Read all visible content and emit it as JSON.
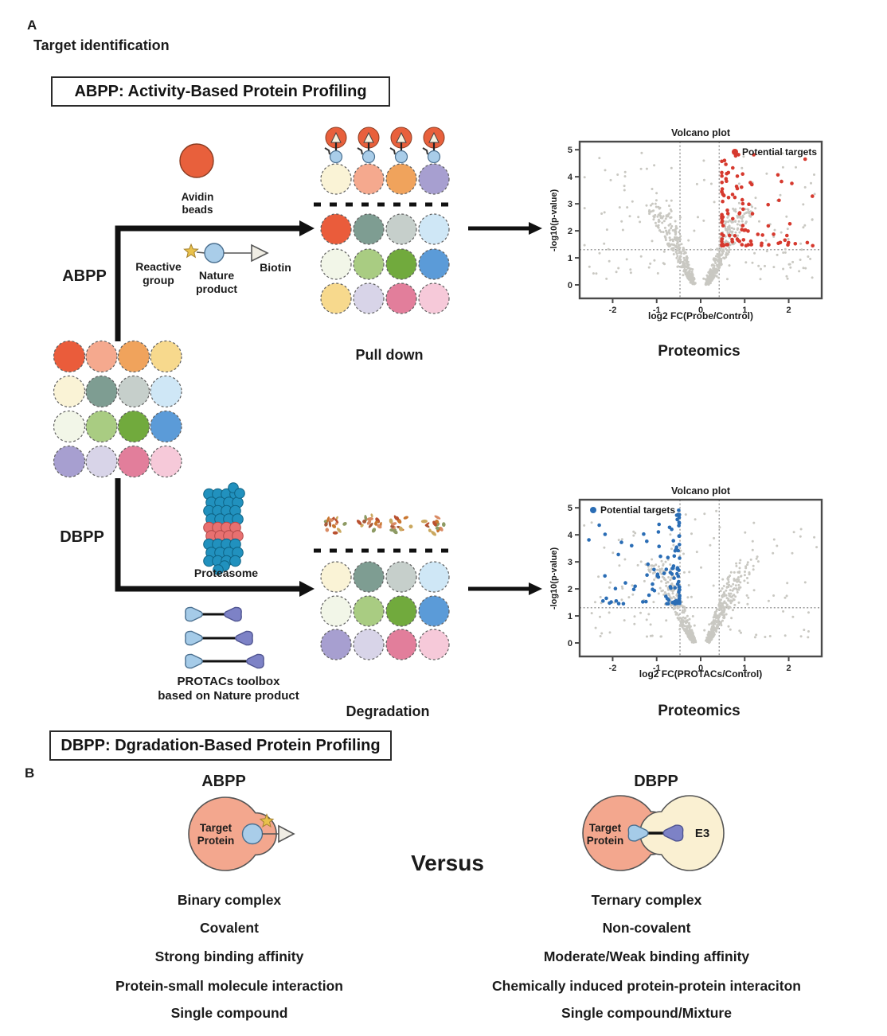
{
  "figure": {
    "panel_a": {
      "label": "A",
      "title": "Target identification",
      "abpp_box": "ABPP: Activity-Based Protein Profiling",
      "dbpp_box": "DBPP: Dgradation-Based Protein Profiling",
      "abpp_label": "ABPP",
      "dbpp_label": "DBPP",
      "avidin_label": "Avidin beads",
      "reactive_group_label": "Reactive group",
      "nature_product_label": "Nature product",
      "biotin_label": "Biotin",
      "proteasome_label": "Proteasome",
      "protacs_label_line1": "PROTACs toolbox",
      "protacs_label_line2": "based on Nature product",
      "pull_down_label": "Pull down",
      "degradation_label": "Degradation",
      "proteomics_label": "Proteomics"
    },
    "panel_b": {
      "label": "B",
      "versus": "Versus",
      "abpp": {
        "title": "ABPP",
        "protein_label": "Target Protein",
        "items": [
          "Binary complex",
          "Covalent",
          "Strong binding affinity",
          "Protein-small molecule interaction",
          "Single compound"
        ]
      },
      "dbpp": {
        "title": "DBPP",
        "protein_label": "Target Protein",
        "e3_label": "E3",
        "items": [
          "Ternary complex",
          "Non-covalent",
          "Moderate/Weak binding affinity",
          "Chemically induced protein-protein interaciton",
          "Single compound/Mixture"
        ]
      }
    }
  },
  "proteome": {
    "grid_colors": [
      [
        "#ea5c3b",
        "#f5a98e",
        "#f0a35c",
        "#f7d98d"
      ],
      [
        "#faf3d6",
        "#7e9d92",
        "#c6cfcb",
        "#cfe7f6"
      ],
      [
        "#f2f6e8",
        "#a9cc82",
        "#71aa3d",
        "#5b9bd8"
      ],
      [
        "#a79fd0",
        "#d8d4e8",
        "#e27e9b",
        "#f6c9d9"
      ]
    ],
    "pulldown_captured": [
      "#faf3d6",
      "#f5a98e",
      "#f0a35c",
      "#a79fd0"
    ],
    "pulldown_grid": [
      [
        "#ea5c3b",
        "#7e9d92",
        "#c6cfcb",
        "#cfe7f6"
      ],
      [
        "#f2f6e8",
        "#a9cc82",
        "#71aa3d",
        "#5b9bd8"
      ],
      [
        "#f7d98d",
        "#d8d4e8",
        "#e27e9b",
        "#f6c9d9"
      ]
    ],
    "degradation_grid": [
      [
        "#faf3d6",
        "#7e9d92",
        "#c6cfcb",
        "#cfe7f6"
      ],
      [
        "#f2f6e8",
        "#a9cc82",
        "#71aa3d",
        "#5b9bd8"
      ],
      [
        "#a79fd0",
        "#d8d4e8",
        "#e27e9b",
        "#f6c9d9"
      ]
    ],
    "fragment_palette": [
      "#b9502f",
      "#d98a63",
      "#c9762f",
      "#caa85f",
      "#8d9a63",
      "#a85a3a"
    ]
  },
  "colors": {
    "avidin": "#e8603c",
    "probe_blue": "#a9cde9",
    "biotin_fill": "#f0ede4",
    "star": "#e9c14b",
    "protac_warhead": "#a5cbe8",
    "protac_e3ligand": "#7d82c6",
    "proteasome_blue": "#2191be",
    "proteasome_red": "#e87070",
    "target_protein": "#f3a78e",
    "e3_fill": "#faf0d2",
    "arrow": "#111111"
  },
  "chart_data": [
    {
      "type": "scatter",
      "variant": "volcano",
      "title": "Volcano plot",
      "xlabel": "log2 FC(Probe/Control)",
      "ylabel": "-log10(p-value)",
      "xlim": [
        -2.75,
        2.75
      ],
      "ylim": [
        -0.5,
        5.3
      ],
      "xticks": [
        -2,
        -1,
        0,
        1,
        2
      ],
      "yticks": [
        0,
        1,
        2,
        3,
        4,
        5
      ],
      "threshold_vlines": [
        -0.47,
        0.42
      ],
      "threshold_hline": 1.3,
      "legend_label": "Potential targets",
      "legend_position": "top-right",
      "highlight_side": "right",
      "highlight_color": "#d6392e",
      "base_color": "#c9c8c2"
    },
    {
      "type": "scatter",
      "variant": "volcano",
      "title": "Volcano plot",
      "xlabel": "log2 FC(PROTACs/Control)",
      "ylabel": "-log10(p-value)",
      "xlim": [
        -2.75,
        2.75
      ],
      "ylim": [
        -0.5,
        5.3
      ],
      "xticks": [
        -2,
        -1,
        0,
        1,
        2
      ],
      "yticks": [
        0,
        1,
        2,
        3,
        4,
        5
      ],
      "threshold_vlines": [
        -0.47,
        0.42
      ],
      "threshold_hline": 1.3,
      "legend_label": "Potential targets",
      "legend_position": "top-left",
      "highlight_side": "left",
      "highlight_color": "#2a6db5",
      "base_color": "#c9c8c2"
    }
  ]
}
